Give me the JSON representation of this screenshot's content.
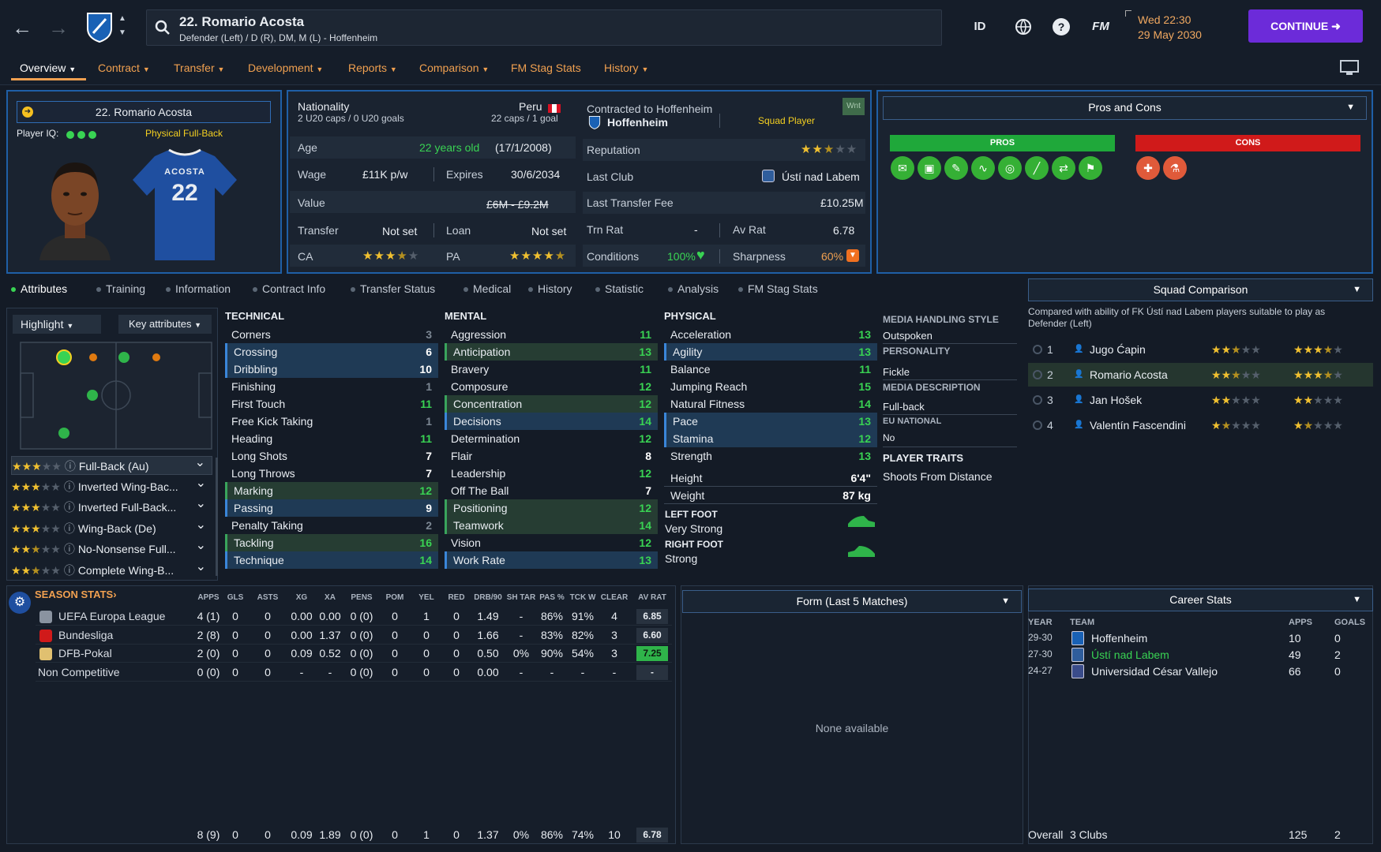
{
  "header": {
    "player_title": "22. Romario Acosta",
    "positions": "Defender (Left) / D (R), DM, M (L) - Hoffenheim",
    "date_line1": "Wed 22:30",
    "date_line2": "29 May 2030",
    "continue_label": "CONTINUE",
    "id_label": "ID",
    "fm_label": "FM",
    "help_label": "?"
  },
  "nav_tabs": [
    "Overview",
    "Contract",
    "Transfer",
    "Development",
    "Reports",
    "Comparison",
    "FM Stag Stats",
    "History"
  ],
  "profile": {
    "name": "22. Romario Acosta",
    "player_iq_label": "Player IQ:",
    "role": "Physical Full-Back",
    "shirt_name": "ACOSTA",
    "shirt_number": "22"
  },
  "details": {
    "nationality_label": "Nationality",
    "nationality": "Peru",
    "u20": "2 U20 caps / 0 U20 goals",
    "caps": "22 caps / 1 goal",
    "age_label": "Age",
    "age": "22 years old",
    "dob": "(17/1/2008)",
    "wage_label": "Wage",
    "wage": "£11K p/w",
    "expires_label": "Expires",
    "expires": "30/6/2034",
    "value_label": "Value",
    "value": "£6M - £9.2M",
    "transfer_label": "Transfer",
    "transfer": "Not set",
    "loan_label": "Loan",
    "loan": "Not set",
    "ca_label": "CA",
    "pa_label": "PA",
    "contracted_label": "Contracted to Hoffenheim",
    "club": "Hoffenheim",
    "squad_status": "Squad Player",
    "wnt": "Wnt",
    "reputation_label": "Reputation",
    "last_club_label": "Last Club",
    "last_club": "Ústí nad Labem",
    "last_fee_label": "Last Transfer Fee",
    "last_fee": "£10.25M",
    "trn_rat_label": "Trn Rat",
    "trn_rat": "-",
    "av_rat_label": "Av Rat",
    "av_rat": "6.78",
    "conditions_label": "Conditions",
    "conditions": "100%",
    "sharpness_label": "Sharpness",
    "sharpness": "60%"
  },
  "pros_cons": {
    "title": "Pros and Cons",
    "pros_label": "PROS",
    "cons_label": "CONS"
  },
  "sub_tabs": [
    "Attributes",
    "Training",
    "Information",
    "Contract Info",
    "Transfer Status",
    "Medical",
    "History",
    "Statistic",
    "Analysis",
    "FM Stag Stats"
  ],
  "controls": {
    "highlight": "Highlight",
    "key_attributes": "Key attributes"
  },
  "roles": [
    {
      "name": "Full-Back (Au)",
      "stars": 3
    },
    {
      "name": "Inverted Wing-Bac...",
      "stars": 3
    },
    {
      "name": "Inverted Full-Back...",
      "stars": 3
    },
    {
      "name": "Wing-Back (De)",
      "stars": 3
    },
    {
      "name": "No-Nonsense Full...",
      "stars": 2.5
    },
    {
      "name": "Complete Wing-B...",
      "stars": 2.5
    }
  ],
  "technical": {
    "title": "TECHNICAL",
    "items": [
      {
        "n": "Corners",
        "v": "3",
        "c": "gr",
        "h": ""
      },
      {
        "n": "Crossing",
        "v": "6",
        "c": "w",
        "h": "hl"
      },
      {
        "n": "Dribbling",
        "v": "10",
        "c": "w",
        "h": "hl"
      },
      {
        "n": "Finishing",
        "v": "1",
        "c": "gr",
        "h": ""
      },
      {
        "n": "First Touch",
        "v": "11",
        "c": "g",
        "h": ""
      },
      {
        "n": "Free Kick Taking",
        "v": "1",
        "c": "gr",
        "h": ""
      },
      {
        "n": "Heading",
        "v": "11",
        "c": "g",
        "h": ""
      },
      {
        "n": "Long Shots",
        "v": "7",
        "c": "w",
        "h": ""
      },
      {
        "n": "Long Throws",
        "v": "7",
        "c": "w",
        "h": ""
      },
      {
        "n": "Marking",
        "v": "12",
        "c": "g",
        "h": "hlg"
      },
      {
        "n": "Passing",
        "v": "9",
        "c": "w",
        "h": "hl"
      },
      {
        "n": "Penalty Taking",
        "v": "2",
        "c": "gr",
        "h": ""
      },
      {
        "n": "Tackling",
        "v": "16",
        "c": "g",
        "h": "hlg"
      },
      {
        "n": "Technique",
        "v": "14",
        "c": "g",
        "h": "hl"
      }
    ]
  },
  "mental": {
    "title": "MENTAL",
    "items": [
      {
        "n": "Aggression",
        "v": "11",
        "c": "g",
        "h": ""
      },
      {
        "n": "Anticipation",
        "v": "13",
        "c": "g",
        "h": "hlg"
      },
      {
        "n": "Bravery",
        "v": "11",
        "c": "g",
        "h": ""
      },
      {
        "n": "Composure",
        "v": "12",
        "c": "g",
        "h": ""
      },
      {
        "n": "Concentration",
        "v": "12",
        "c": "g",
        "h": "hlg"
      },
      {
        "n": "Decisions",
        "v": "14",
        "c": "g",
        "h": "hl"
      },
      {
        "n": "Determination",
        "v": "12",
        "c": "g",
        "h": ""
      },
      {
        "n": "Flair",
        "v": "8",
        "c": "w",
        "h": ""
      },
      {
        "n": "Leadership",
        "v": "12",
        "c": "g",
        "h": ""
      },
      {
        "n": "Off The Ball",
        "v": "7",
        "c": "w",
        "h": ""
      },
      {
        "n": "Positioning",
        "v": "12",
        "c": "g",
        "h": "hlg"
      },
      {
        "n": "Teamwork",
        "v": "14",
        "c": "g",
        "h": "hlg"
      },
      {
        "n": "Vision",
        "v": "12",
        "c": "g",
        "h": ""
      },
      {
        "n": "Work Rate",
        "v": "13",
        "c": "g",
        "h": "hl"
      }
    ]
  },
  "physical": {
    "title": "PHYSICAL",
    "items": [
      {
        "n": "Acceleration",
        "v": "13",
        "c": "g",
        "h": ""
      },
      {
        "n": "Agility",
        "v": "13",
        "c": "g",
        "h": "hl"
      },
      {
        "n": "Balance",
        "v": "11",
        "c": "g",
        "h": ""
      },
      {
        "n": "Jumping Reach",
        "v": "15",
        "c": "g",
        "h": ""
      },
      {
        "n": "Natural Fitness",
        "v": "14",
        "c": "g",
        "h": ""
      },
      {
        "n": "Pace",
        "v": "13",
        "c": "g",
        "h": "hl"
      },
      {
        "n": "Stamina",
        "v": "12",
        "c": "g",
        "h": "hl"
      },
      {
        "n": "Strength",
        "v": "13",
        "c": "g",
        "h": ""
      }
    ],
    "height_label": "Height",
    "height": "6'4\"",
    "weight_label": "Weight",
    "weight": "87 kg",
    "left_foot_label": "LEFT FOOT",
    "left_foot": "Very Strong",
    "right_foot_label": "RIGHT FOOT",
    "right_foot": "Strong"
  },
  "media": {
    "style_label": "MEDIA HANDLING STYLE",
    "style": "Outspoken",
    "personality_label": "PERSONALITY",
    "personality": "Fickle",
    "desc_label": "MEDIA DESCRIPTION",
    "desc": "Full-back",
    "eu_label": "EU NATIONAL",
    "eu": "No",
    "traits_label": "PLAYER TRAITS",
    "traits": "Shoots From Distance"
  },
  "squad": {
    "title": "Squad Comparison",
    "note": "Compared with ability of FK Ústí nad Labem players suitable to play as Defender (Left)",
    "rows": [
      {
        "rank": "1",
        "name": "Jugo Ćapin",
        "ca": 2.5,
        "pa": 3.5
      },
      {
        "rank": "2",
        "name": "Romario Acosta",
        "ca": 2.5,
        "pa": 3.5
      },
      {
        "rank": "3",
        "name": "Jan Hošek",
        "ca": 2,
        "pa": 2
      },
      {
        "rank": "4",
        "name": "Valentín Fascendini",
        "ca": 1.5,
        "pa": 1.5
      }
    ]
  },
  "season": {
    "title": "SEASON STATS",
    "headers": [
      "APPS",
      "GLS",
      "ASTS",
      "XG",
      "XA",
      "PENS",
      "POM",
      "YEL",
      "RED",
      "DRB/90",
      "SH TAR",
      "PAS %",
      "TCK W",
      "CLEAR",
      "AV RAT"
    ],
    "rows": [
      {
        "comp": "UEFA Europa League",
        "vals": [
          "4 (1)",
          "0",
          "0",
          "0.00",
          "0.00",
          "0 (0)",
          "0",
          "1",
          "0",
          "1.49",
          "-",
          "86%",
          "91%",
          "4",
          "6.85"
        ]
      },
      {
        "comp": "Bundesliga",
        "vals": [
          "2 (8)",
          "0",
          "0",
          "0.00",
          "1.37",
          "0 (0)",
          "0",
          "0",
          "0",
          "1.66",
          "-",
          "83%",
          "82%",
          "3",
          "6.60"
        ]
      },
      {
        "comp": "DFB-Pokal",
        "vals": [
          "2 (0)",
          "0",
          "0",
          "0.09",
          "0.52",
          "0 (0)",
          "0",
          "0",
          "0",
          "0.50",
          "0%",
          "90%",
          "54%",
          "3",
          "7.25"
        ]
      },
      {
        "comp": "Non Competitive",
        "vals": [
          "0 (0)",
          "0",
          "0",
          "-",
          "-",
          "0 (0)",
          "0",
          "0",
          "0",
          "0.00",
          "-",
          "-",
          "-",
          "-",
          "-"
        ]
      }
    ],
    "totals": [
      "8 (9)",
      "0",
      "0",
      "0.09",
      "1.89",
      "0 (0)",
      "0",
      "1",
      "0",
      "1.37",
      "0%",
      "86%",
      "74%",
      "10",
      "6.78"
    ]
  },
  "form": {
    "title": "Form (Last 5 Matches)",
    "empty": "None available"
  },
  "career": {
    "title": "Career Stats",
    "headers": [
      "YEAR",
      "TEAM",
      "APPS",
      "GOALS"
    ],
    "rows": [
      {
        "year": "29-30",
        "team": "Hoffenheim",
        "apps": "10",
        "goals": "0"
      },
      {
        "year": "27-30",
        "team": "Ústí nad Labem",
        "apps": "49",
        "goals": "2"
      },
      {
        "year": "24-27",
        "team": "Universidad César Vallejo",
        "apps": "66",
        "goals": "0"
      }
    ],
    "total_label": "Overall",
    "total_clubs": "3 Clubs",
    "total_apps": "125",
    "total_goals": "2"
  }
}
